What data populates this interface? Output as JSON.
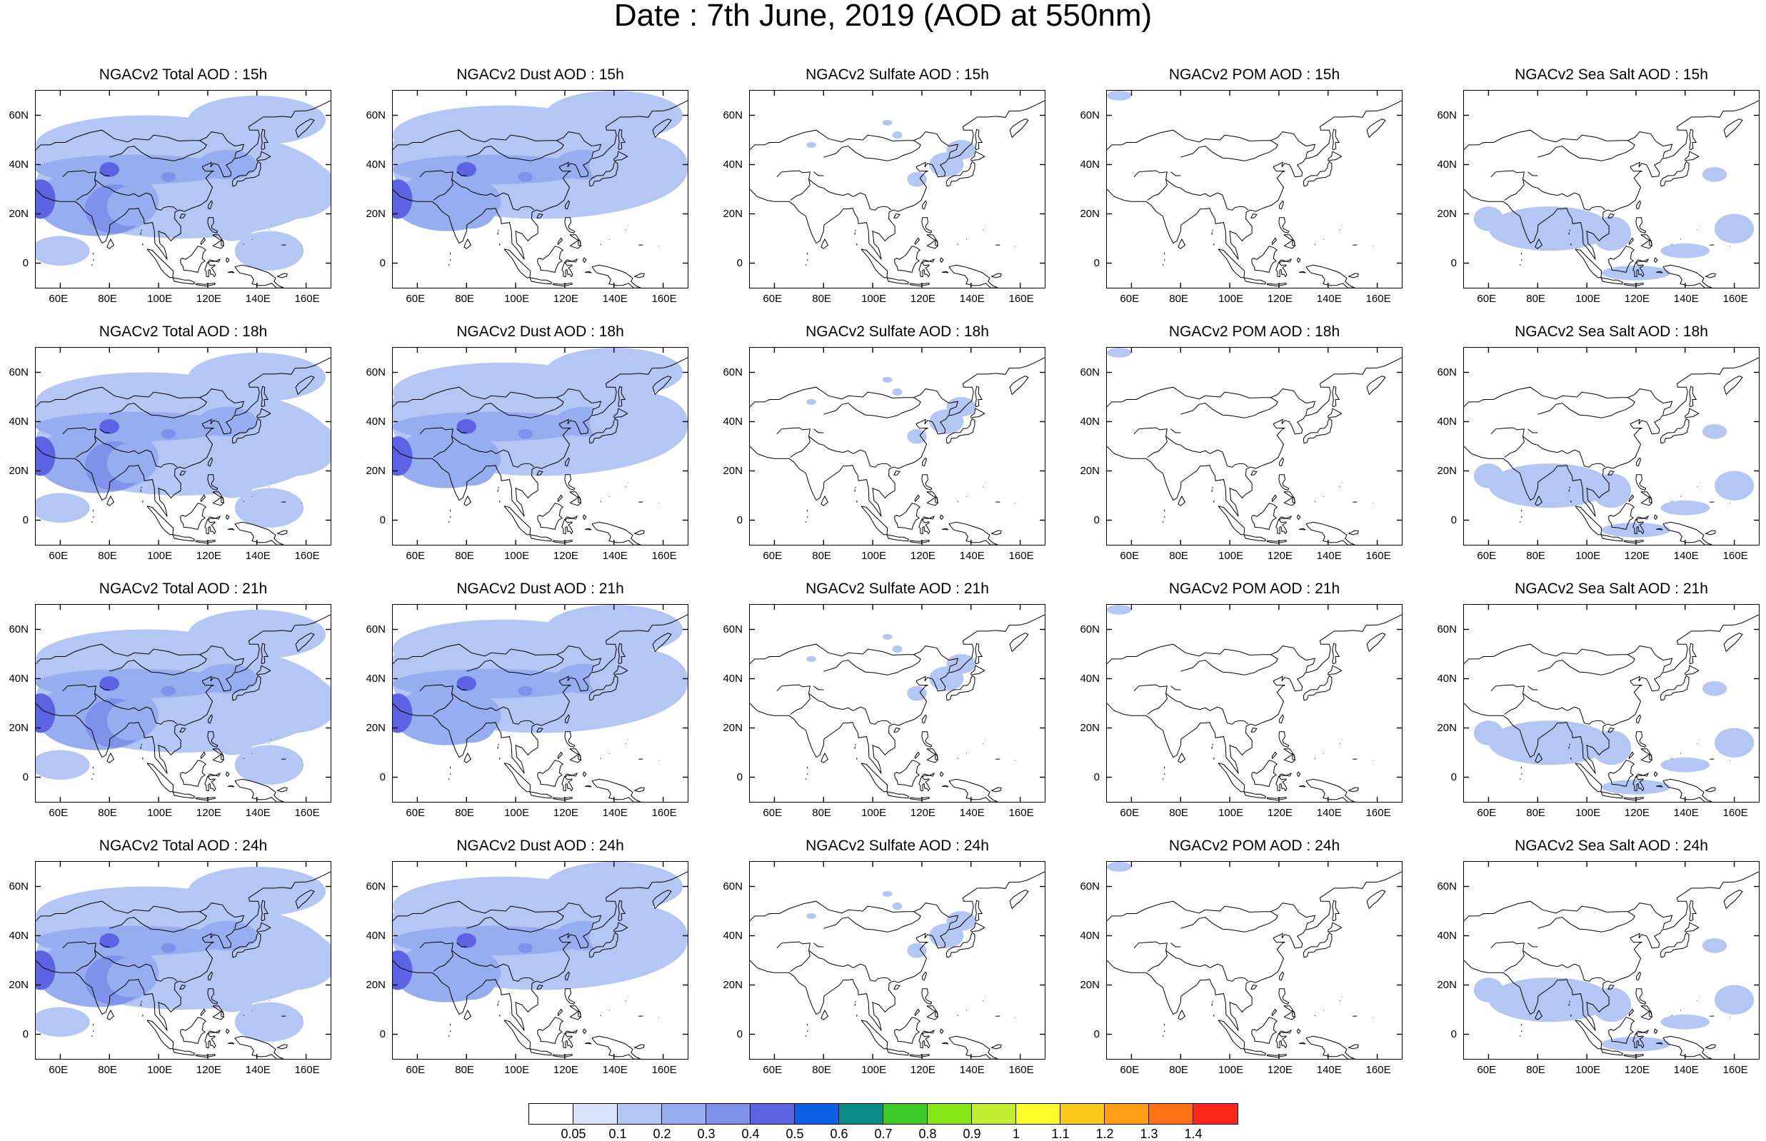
{
  "title": "Date : 7th June, 2019 (AOD at 550nm)",
  "lon_ticks": [
    "60E",
    "80E",
    "100E",
    "120E",
    "140E",
    "160E"
  ],
  "lat_ticks": [
    "60N",
    "40N",
    "20N",
    "0"
  ],
  "species": [
    {
      "key": "total",
      "accent": "#5a78d8"
    },
    {
      "key": "dust",
      "accent": "#5a78d8"
    },
    {
      "key": "sulfate",
      "accent": "#a8c0f0"
    },
    {
      "key": "pom",
      "accent": "#d0ddf8"
    },
    {
      "key": "seasalt",
      "accent": "#9bb4ee"
    }
  ],
  "panels": [
    {
      "title": "NGACv2 Total AOD : 15h"
    },
    {
      "title": "NGACv2 Dust AOD : 15h"
    },
    {
      "title": "NGACv2 Sulfate AOD : 15h"
    },
    {
      "title": "NGACv2 POM AOD : 15h"
    },
    {
      "title": "NGACv2 Sea Salt AOD : 15h"
    },
    {
      "title": "NGACv2 Total AOD : 18h"
    },
    {
      "title": "NGACv2 Dust AOD : 18h"
    },
    {
      "title": "NGACv2 Sulfate AOD : 18h"
    },
    {
      "title": "NGACv2 POM AOD : 18h"
    },
    {
      "title": "NGACv2 Sea Salt AOD : 18h"
    },
    {
      "title": "NGACv2 Total AOD : 21h"
    },
    {
      "title": "NGACv2 Dust AOD : 21h"
    },
    {
      "title": "NGACv2 Sulfate AOD : 21h"
    },
    {
      "title": "NGACv2 POM AOD : 21h"
    },
    {
      "title": "NGACv2 Sea Salt AOD : 21h"
    },
    {
      "title": "NGACv2 Total AOD : 24h"
    },
    {
      "title": "NGACv2 Dust AOD : 24h"
    },
    {
      "title": "NGACv2 Sulfate AOD : 24h"
    },
    {
      "title": "NGACv2 POM AOD : 24h"
    },
    {
      "title": "NGACv2 Sea Salt  AOD : 24h"
    }
  ],
  "colorbar": {
    "labels": [
      "0.05",
      "0.1",
      "0.2",
      "0.3",
      "0.4",
      "0.5",
      "0.6",
      "0.7",
      "0.8",
      "0.9",
      "1",
      "1.1",
      "1.2",
      "1.3",
      "1.4"
    ],
    "colors": [
      "#ffffff",
      "#d8e2fa",
      "#b4c6f4",
      "#96aef0",
      "#7f92ea",
      "#5c64e4",
      "#0c60e6",
      "#0a8c8a",
      "#3ccc2a",
      "#84e614",
      "#c2ee32",
      "#fefe2a",
      "#fcc81c",
      "#fc9e16",
      "#fc7214",
      "#fc261a"
    ]
  }
}
